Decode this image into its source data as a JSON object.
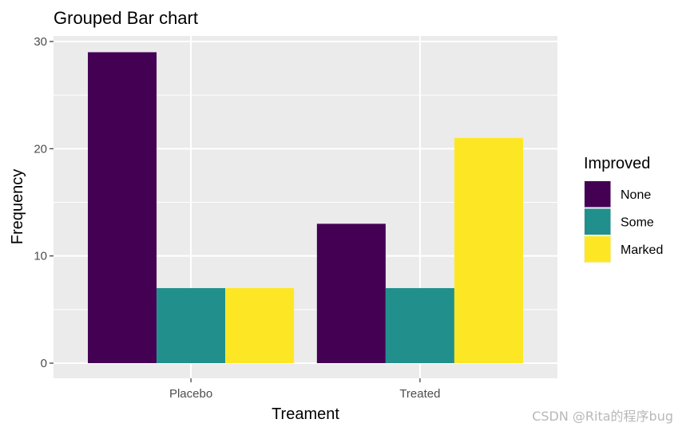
{
  "chart_data": {
    "type": "bar",
    "title": "Grouped Bar chart",
    "xlabel": "Treament",
    "ylabel": "Frequency",
    "categories": [
      "Placebo",
      "Treated"
    ],
    "series": [
      {
        "name": "None",
        "values": [
          29,
          13
        ],
        "color": "#440154"
      },
      {
        "name": "Some",
        "values": [
          7,
          7
        ],
        "color": "#21908C"
      },
      {
        "name": "Marked",
        "values": [
          7,
          21
        ],
        "color": "#FDE725"
      }
    ],
    "ylim": [
      0,
      30
    ],
    "yticks": [
      0,
      10,
      20,
      30
    ],
    "ytick_labels": [
      "0",
      "10",
      "20",
      "30"
    ],
    "legend_title": "Improved",
    "legend_position": "right",
    "grid": true,
    "background": "#EBEBEB"
  },
  "watermark": "CSDN @Rita的程序bug"
}
